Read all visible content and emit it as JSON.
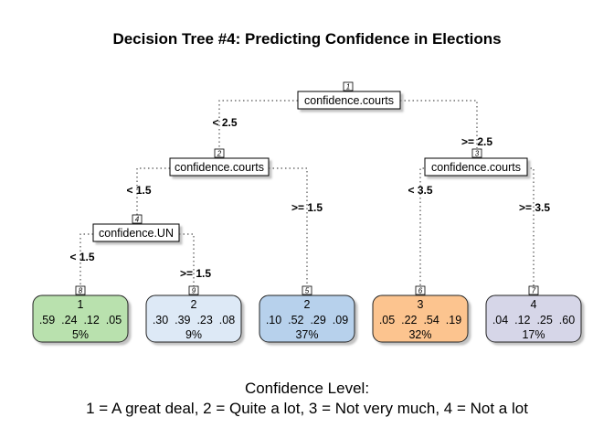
{
  "title": "Decision Tree #4: Predicting Confidence in Elections",
  "colors": {
    "leaf_class1": "#b9e1ae",
    "leaf_class2_light": "#dde9f6",
    "leaf_class2_dark": "#b7d1ec",
    "leaf_class3": "#fcc48f",
    "leaf_class4": "#d6d6e8"
  },
  "nodes": [
    {
      "id": "1",
      "split": "confidence.courts",
      "left_edge": "< 2.5",
      "right_edge": ">= 2.5"
    },
    {
      "id": "2",
      "split": "confidence.courts",
      "left_edge": "< 1.5",
      "right_edge": ">= 1.5"
    },
    {
      "id": "3",
      "split": "confidence.courts",
      "left_edge": "< 3.5",
      "right_edge": ">= 3.5"
    },
    {
      "id": "4",
      "split": "confidence.UN",
      "left_edge": "< 1.5",
      "right_edge": ">= 1.5"
    }
  ],
  "leaves": [
    {
      "id": "8",
      "class": "1",
      "probs": ".59  .24  .12  .05",
      "pct": "5%"
    },
    {
      "id": "9",
      "class": "2",
      "probs": ".30  .39  .23  .08",
      "pct": "9%"
    },
    {
      "id": "5",
      "class": "2",
      "probs": ".10  .52  .29  .09",
      "pct": "37%"
    },
    {
      "id": "6",
      "class": "3",
      "probs": ".05  .22  .54  .19",
      "pct": "32%"
    },
    {
      "id": "7",
      "class": "4",
      "probs": ".04  .12  .25  .60",
      "pct": "17%"
    }
  ],
  "caption": {
    "line1": "Confidence Level:",
    "line2": "1 = A great deal, 2 = Quite a lot, 3 = Not very much, 4 = Not a lot"
  }
}
